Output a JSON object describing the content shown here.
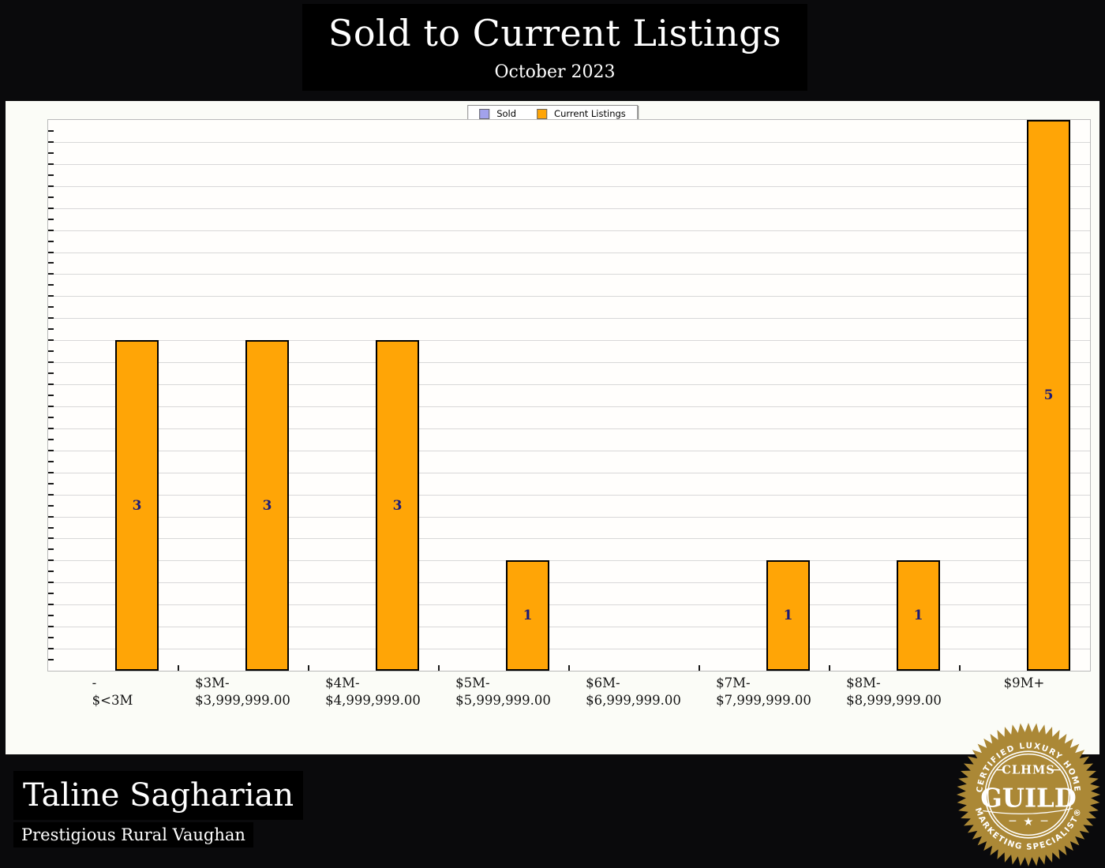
{
  "chart_data": {
    "type": "bar",
    "title": "Sold to Current Listings",
    "subtitle": "October 2023",
    "categories": [
      [
        "-",
        "$<3M"
      ],
      [
        "$3M-",
        "$3,999,999.00"
      ],
      [
        "$4M-",
        "$4,999,999.00"
      ],
      [
        "$5M-",
        "$5,999,999.00"
      ],
      [
        "$6M-",
        "$6,999,999.00"
      ],
      [
        "$7M-",
        "$7,999,999.00"
      ],
      [
        "$8M-",
        "$8,999,999.00"
      ],
      [
        "$9M+"
      ]
    ],
    "series": [
      {
        "name": "Sold",
        "color": "#a2a2ec",
        "values": [
          0,
          0,
          0,
          0,
          0,
          0,
          0,
          0
        ]
      },
      {
        "name": "Current Listings",
        "color": "#ffa506",
        "values": [
          3,
          3,
          3,
          1,
          0,
          1,
          1,
          5
        ]
      }
    ],
    "ylim": [
      0,
      5
    ],
    "grid_step": 0.2,
    "minor_tick_step": 0.1,
    "grid": "on",
    "legend_position": "top-center",
    "bar_label_color": "#1b1b78"
  },
  "footer": {
    "name": "Taline Sagharian",
    "tagline": "Prestigious Rural Vaughan"
  },
  "badge": {
    "top_arc": "CERTIFIED LUXURY HOME",
    "org": "CLHMS",
    "main": "GUILD",
    "bottom_arc": "MARKETING SPECIALIST®",
    "star": "★",
    "gold": "#ab8836"
  }
}
